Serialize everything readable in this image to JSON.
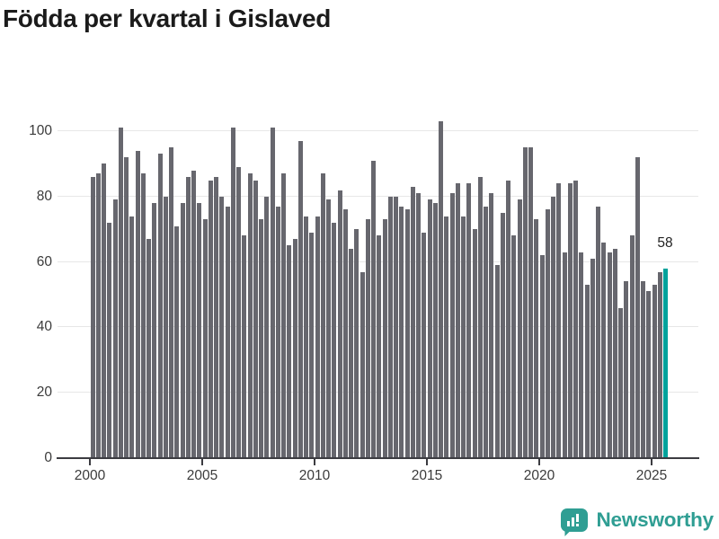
{
  "page_title": "Födda per kvartal i Gislaved",
  "footer": {
    "brand": "Newsworthy"
  },
  "colors": {
    "bar": "#67676e",
    "highlight": "#00a29c",
    "grid": "#e7e7e7",
    "axis": "#3c3c41",
    "tick_text": "#3b3b3b",
    "title_text": "#1b1b1b",
    "logo": "#2f9e93"
  },
  "chart_data": {
    "type": "bar",
    "title": "Födda per kvartal i Gislaved",
    "xlabel": "",
    "ylabel": "",
    "frequency": "quarterly",
    "period_start": "2000 Q1",
    "period_end": "2025 Q3",
    "values": [
      86,
      87,
      90,
      72,
      79,
      101,
      92,
      74,
      94,
      87,
      67,
      78,
      93,
      80,
      95,
      71,
      78,
      86,
      88,
      78,
      73,
      85,
      86,
      80,
      77,
      101,
      89,
      68,
      87,
      85,
      73,
      80,
      101,
      77,
      87,
      65,
      67,
      97,
      74,
      69,
      74,
      87,
      79,
      72,
      82,
      76,
      64,
      70,
      57,
      73,
      91,
      68,
      73,
      80,
      80,
      77,
      76,
      83,
      81,
      69,
      79,
      78,
      103,
      74,
      81,
      84,
      74,
      84,
      70,
      86,
      77,
      81,
      59,
      75,
      85,
      68,
      79,
      95,
      95,
      73,
      62,
      76,
      80,
      84,
      63,
      84,
      85,
      63,
      53,
      61,
      77,
      66,
      63,
      64,
      46,
      54,
      68,
      92,
      54,
      51,
      53,
      57,
      58
    ],
    "highlight_index": 102,
    "highlight_label": "58",
    "yticks": [
      0,
      20,
      40,
      60,
      80,
      100
    ],
    "xticks": [
      "2000",
      "2005",
      "2010",
      "2015",
      "2020",
      "2025"
    ],
    "ylim": [
      0,
      104
    ],
    "grid": "horizontal",
    "legend": "none"
  }
}
